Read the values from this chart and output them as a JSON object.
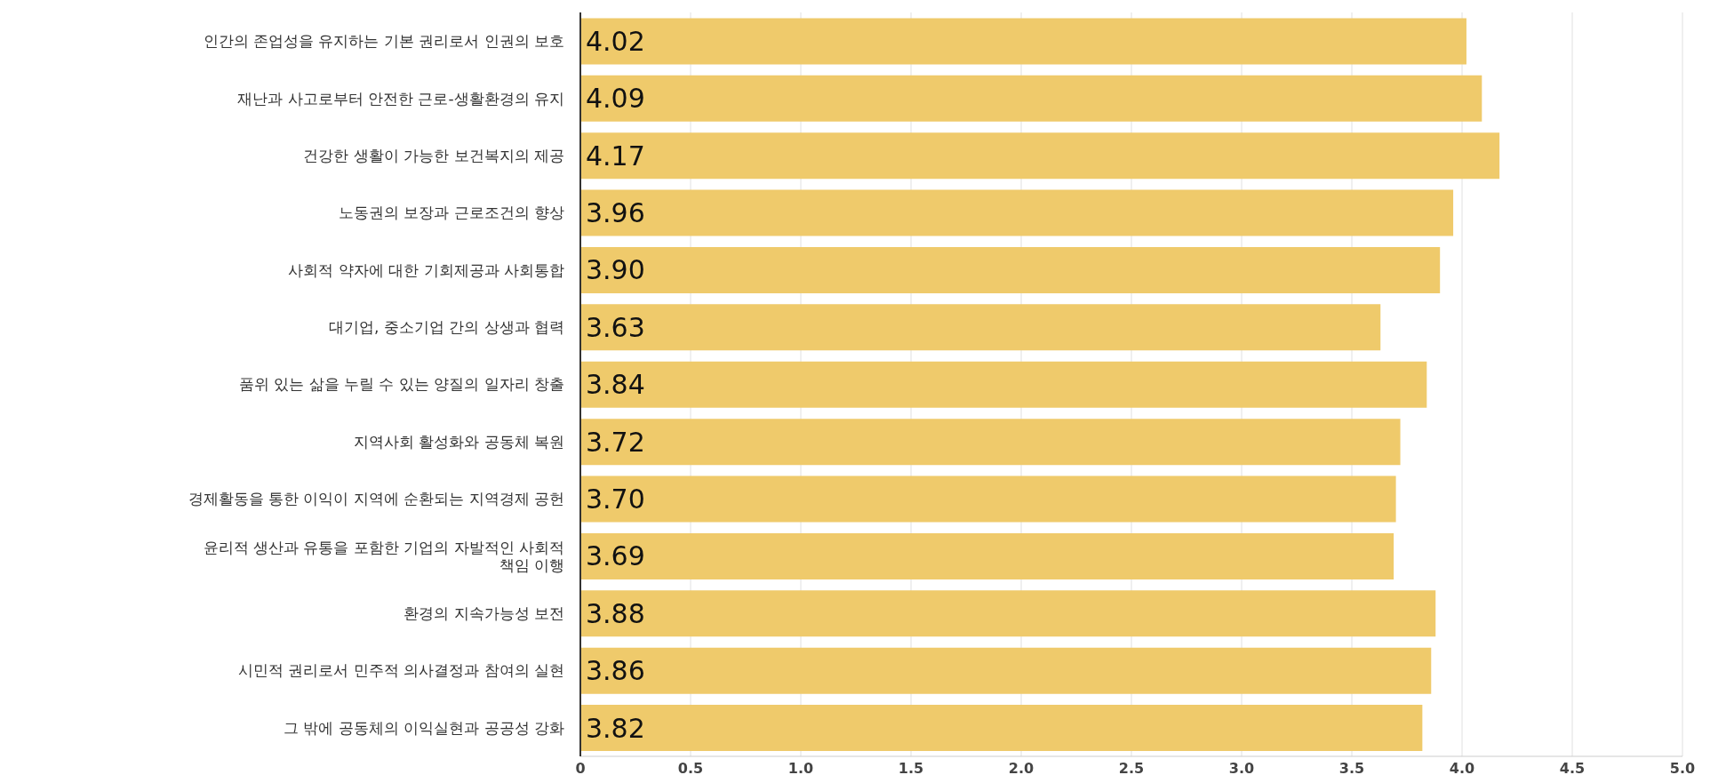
{
  "chart_data": {
    "type": "bar",
    "orientation": "horizontal",
    "categories": [
      "인간의 존업성을 유지하는 기본 권리로서 인권의 보호",
      "재난과 사고로부터 안전한 근로-생활환경의 유지",
      "건강한 생활이 가능한 보건복지의 제공",
      "노동권의 보장과 근로조건의 향상",
      "사회적 약자에 대한 기회제공과 사회통합",
      "대기업, 중소기업 간의 상생과 협력",
      "품위 있는 삶을 누릴 수 있는 양질의 일자리 창출",
      "지역사회 활성화와 공동체 복원",
      "경제활동을 통한 이익이 지역에 순환되는 지역경제 공헌",
      "윤리적 생산과 유통을 포함한 기업의 자발적인 사회적 책임 이행",
      "환경의 지속가능성 보전",
      "시민적 권리로서 민주적 의사결정과 참여의 실현",
      "그 밖에 공동체의 이익실현과 공공성 강화"
    ],
    "values": [
      4.02,
      4.09,
      4.17,
      3.96,
      3.9,
      3.63,
      3.84,
      3.72,
      3.7,
      3.69,
      3.88,
      3.86,
      3.82
    ],
    "value_labels": [
      "4.02",
      "4.09",
      "4.17",
      "3.96",
      "3.90",
      "3.63",
      "3.84",
      "3.72",
      "3.70",
      "3.69",
      "3.88",
      "3.86",
      "3.82"
    ],
    "color": "#efca6b",
    "xlim": [
      0,
      5
    ],
    "xticks": [
      0,
      0.5,
      {
        "value": 1,
        "label": "1.0"
      },
      1.5,
      {
        "value": 2,
        "label": "2.0"
      },
      2.5,
      {
        "value": 3,
        "label": "3.0"
      },
      3.5,
      {
        "value": 4,
        "label": "4.0"
      },
      4.5,
      {
        "value": 5,
        "label": "5.0"
      }
    ],
    "grid": "x",
    "legend": false
  }
}
